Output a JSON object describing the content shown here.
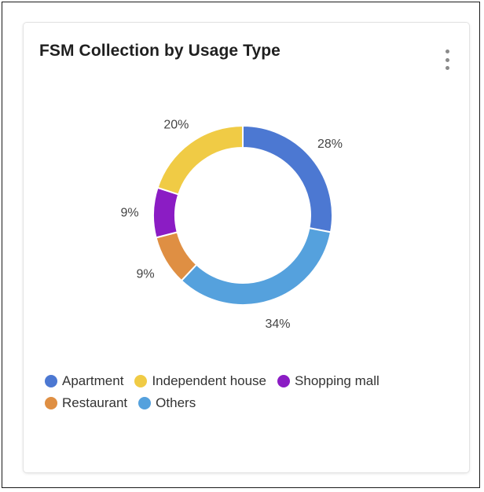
{
  "card": {
    "title": "FSM Collection by Usage Type",
    "menu_icon": "more-vertical-icon"
  },
  "chart_data": {
    "type": "pie",
    "variant": "donut",
    "title": "FSM Collection by Usage Type",
    "categories": [
      "Apartment",
      "Independent house",
      "Shopping mall",
      "Restaurant",
      "Others"
    ],
    "values": [
      28,
      20,
      9,
      9,
      34
    ],
    "value_labels": [
      "28%",
      "20%",
      "9%",
      "9%",
      "34%"
    ],
    "colors": [
      "#4c78d2",
      "#f0cb45",
      "#8b1cc4",
      "#df8f43",
      "#55a1dd"
    ],
    "legend_position": "bottom-left"
  }
}
